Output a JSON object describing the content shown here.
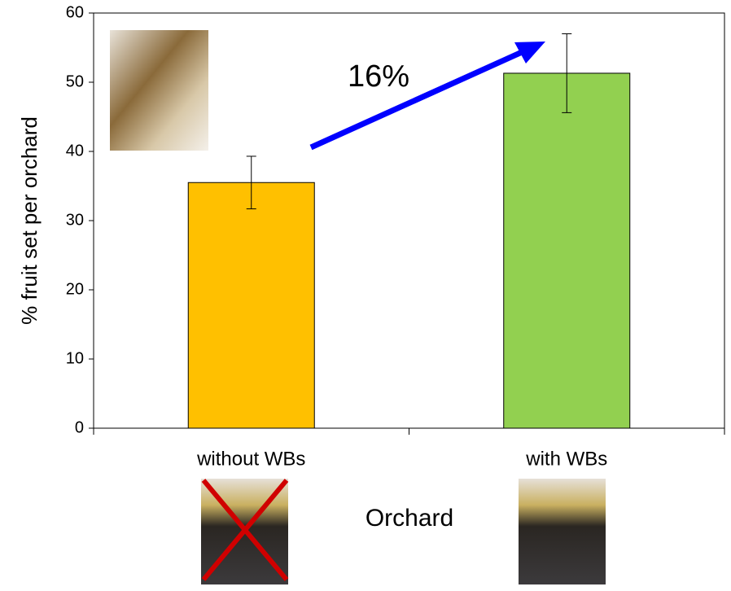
{
  "chart_data": {
    "type": "bar",
    "categories": [
      "without WBs",
      "with WBs"
    ],
    "values": [
      35.5,
      51.3
    ],
    "errors": [
      3.8,
      5.7
    ],
    "colors": [
      "#ffc000",
      "#92d050"
    ],
    "ylabel": "% fruit set per orchard",
    "xlabel": "Orchard",
    "annotations": [
      "16%"
    ],
    "ylim": [
      0,
      60
    ],
    "yticks": [
      0,
      10,
      20,
      30,
      40,
      50,
      60
    ],
    "grid": false
  }
}
